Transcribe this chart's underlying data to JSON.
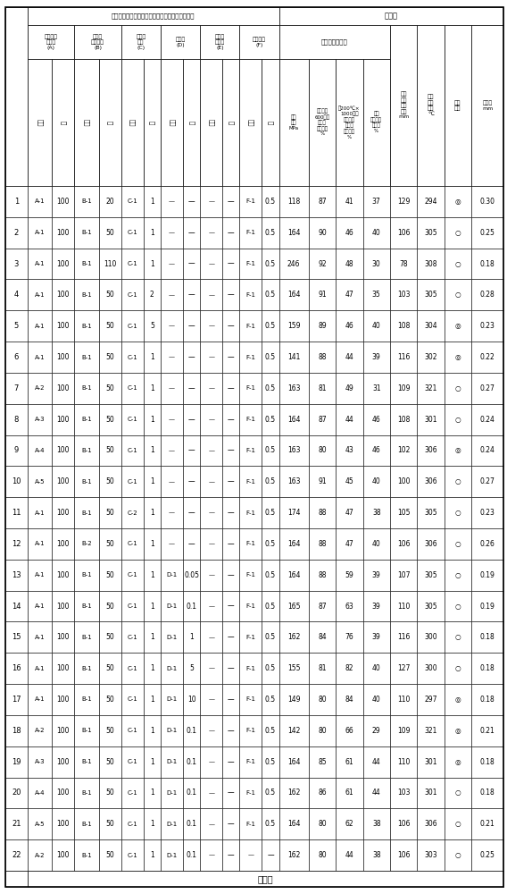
{
  "row_numbers": [
    "1",
    "2",
    "3",
    "4",
    "5",
    "6",
    "7",
    "8",
    "9",
    "10",
    "11",
    "12",
    "13",
    "14",
    "15",
    "16",
    "17",
    "18",
    "19",
    "20",
    "21",
    "22"
  ],
  "bottom_label": "实施例",
  "A_type": [
    "A-1",
    "A-1",
    "A-1",
    "A-1",
    "A-1",
    "A-1",
    "A-2",
    "A-3",
    "A-4",
    "A-5",
    "A-1",
    "A-1",
    "A-1",
    "A-1",
    "A-1",
    "A-1",
    "A-1",
    "A-2",
    "A-3",
    "A-4",
    "A-5",
    "A-2"
  ],
  "A_amt": [
    "100",
    "100",
    "100",
    "100",
    "100",
    "100",
    "100",
    "100",
    "100",
    "100",
    "100",
    "100",
    "100",
    "100",
    "100",
    "100",
    "100",
    "100",
    "100",
    "100",
    "100",
    "100"
  ],
  "B_type": [
    "B-1",
    "B-1",
    "B-1",
    "B-1",
    "B-1",
    "B-1",
    "B-1",
    "B-1",
    "B-1",
    "B-1",
    "B-1",
    "B-2",
    "B-1",
    "B-1",
    "B-1",
    "B-1",
    "B-1",
    "B-1",
    "B-1",
    "B-1",
    "B-1",
    "B-1"
  ],
  "B_amt": [
    "20",
    "50",
    "110",
    "50",
    "50",
    "50",
    "50",
    "50",
    "50",
    "50",
    "50",
    "50",
    "50",
    "50",
    "50",
    "50",
    "50",
    "50",
    "50",
    "50",
    "50",
    "50"
  ],
  "C_type": [
    "C-1",
    "C-1",
    "C-1",
    "C-1",
    "C-1",
    "C-1",
    "C-1",
    "C-1",
    "C-1",
    "C-1",
    "C-2",
    "C-1",
    "C-1",
    "C-1",
    "C-1",
    "C-1",
    "C-1",
    "C-1",
    "C-1",
    "C-1",
    "C-1",
    "C-1"
  ],
  "C_amt": [
    "1",
    "1",
    "1",
    "2",
    "5",
    "1",
    "1",
    "1",
    "1",
    "1",
    "1",
    "1",
    "1",
    "1",
    "1",
    "1",
    "1",
    "1",
    "1",
    "1",
    "1",
    "1"
  ],
  "D_type": [
    "—",
    "—",
    "—",
    "—",
    "—",
    "—",
    "—",
    "—",
    "—",
    "—",
    "—",
    "—",
    "D-1",
    "D-1",
    "D-1",
    "D-1",
    "D-1",
    "D-1",
    "D-1",
    "D-1",
    "D-1",
    "D-1"
  ],
  "D_amt": [
    "—",
    "—",
    "—",
    "—",
    "—",
    "—",
    "—",
    "—",
    "—",
    "—",
    "—",
    "—",
    "0.05",
    "0.1",
    "1",
    "5",
    "10",
    "0.1",
    "0.1",
    "0.1",
    "0.1",
    "0.1"
  ],
  "E_type": [
    "—",
    "—",
    "—",
    "—",
    "—",
    "—",
    "—",
    "—",
    "—",
    "—",
    "—",
    "—",
    "—",
    "—",
    "—",
    "—",
    "—",
    "—",
    "—",
    "—",
    "—",
    "—"
  ],
  "E_amt": [
    "—",
    "—",
    "—",
    "—",
    "—",
    "—",
    "—",
    "—",
    "—",
    "—",
    "—",
    "—",
    "—",
    "—",
    "—",
    "—",
    "—",
    "—",
    "—",
    "—",
    "—",
    "—"
  ],
  "F_type": [
    "F-1",
    "F-1",
    "F-1",
    "F-1",
    "F-1",
    "F-1",
    "F-1",
    "F-1",
    "F-1",
    "F-1",
    "F-1",
    "F-1",
    "F-1",
    "F-1",
    "F-1",
    "F-1",
    "F-1",
    "F-1",
    "F-1",
    "F-1",
    "F-1",
    "—"
  ],
  "F_amt": [
    "0.5",
    "0.5",
    "0.5",
    "0.5",
    "0.5",
    "0.5",
    "0.5",
    "0.5",
    "0.5",
    "0.5",
    "0.5",
    "0.5",
    "0.5",
    "0.5",
    "0.5",
    "0.5",
    "0.5",
    "0.5",
    "0.5",
    "0.5",
    "0.5",
    "—"
  ],
  "tensile": [
    "118",
    "164",
    "246",
    "164",
    "159",
    "141",
    "163",
    "164",
    "163",
    "163",
    "174",
    "164",
    "164",
    "165",
    "162",
    "155",
    "149",
    "142",
    "164",
    "162",
    "164",
    "162"
  ],
  "ret1": [
    "87",
    "90",
    "92",
    "91",
    "89",
    "88",
    "81",
    "87",
    "80",
    "91",
    "88",
    "88",
    "88",
    "87",
    "84",
    "81",
    "80",
    "80",
    "85",
    "86",
    "80",
    "80"
  ],
  "ret2": [
    "41",
    "46",
    "48",
    "47",
    "46",
    "44",
    "49",
    "44",
    "43",
    "45",
    "47",
    "47",
    "59",
    "63",
    "76",
    "82",
    "84",
    "66",
    "61",
    "61",
    "62",
    "44"
  ],
  "weld": [
    "37",
    "40",
    "30",
    "35",
    "40",
    "39",
    "31",
    "46",
    "46",
    "40",
    "38",
    "40",
    "39",
    "39",
    "39",
    "40",
    "40",
    "29",
    "44",
    "44",
    "38",
    "38"
  ],
  "flow": [
    "129",
    "106",
    "78",
    "103",
    "108",
    "116",
    "109",
    "108",
    "102",
    "100",
    "105",
    "106",
    "107",
    "110",
    "116",
    "127",
    "110",
    "109",
    "110",
    "103",
    "106",
    "106"
  ],
  "deflect": [
    "294",
    "305",
    "308",
    "305",
    "304",
    "302",
    "321",
    "301",
    "306",
    "306",
    "305",
    "306",
    "305",
    "305",
    "300",
    "300",
    "297",
    "321",
    "301",
    "301",
    "306",
    "303"
  ],
  "surface": [
    "◎",
    "○",
    "○",
    "○",
    "◎",
    "◎",
    "○",
    "○",
    "◎",
    "○",
    "○",
    "○",
    "○",
    "○",
    "○",
    "○",
    "◎",
    "◎",
    "◎",
    "○",
    "○",
    "○"
  ],
  "shrink": [
    "0.30",
    "0.25",
    "0.18",
    "0.28",
    "0.23",
    "0.22",
    "0.27",
    "0.24",
    "0.24",
    "0.27",
    "0.23",
    "0.26",
    "0.19",
    "0.19",
    "0.18",
    "0.18",
    "0.18",
    "0.21",
    "0.18",
    "0.18",
    "0.21",
    "0.25"
  ],
  "label_comp": "半芳香族聚酰胺树脂组合物的组成（份为质量份）",
  "label_char": "特性值",
  "label_tensile_group": "拉伸强度保持率",
  "label_A": "半芳香族\n聚酰胺\n(A)",
  "label_B": "纤维状\n强化材料\n(B)",
  "label_C": "竹炭系\n紫料\n(C)",
  "label_D": "多元醇\n(D)",
  "label_E": "其它的\n聚酰胺\n(E)",
  "label_F": "抗氧化剂\n(F)",
  "label_tensile": "拉伸\n强度\nMPa",
  "label_ret1": "洸渍处理\n600秒后\n（滝留\n稳定性）\n%",
  "label_ret2": "在200℃×\n1000小时\n热处理后\n（耐热\n老化性）\n%",
  "label_weld": "具有\n熱接部的\n成型体\n%",
  "label_flow": "形态\n流体\n流动\n长度\nmm",
  "label_deflect": "裁荷\n挠曲\n温度\n℃",
  "label_surface": "表面\n外观",
  "label_shrink": "收缩率\nmm",
  "label_type": "种类",
  "label_amt": "份"
}
